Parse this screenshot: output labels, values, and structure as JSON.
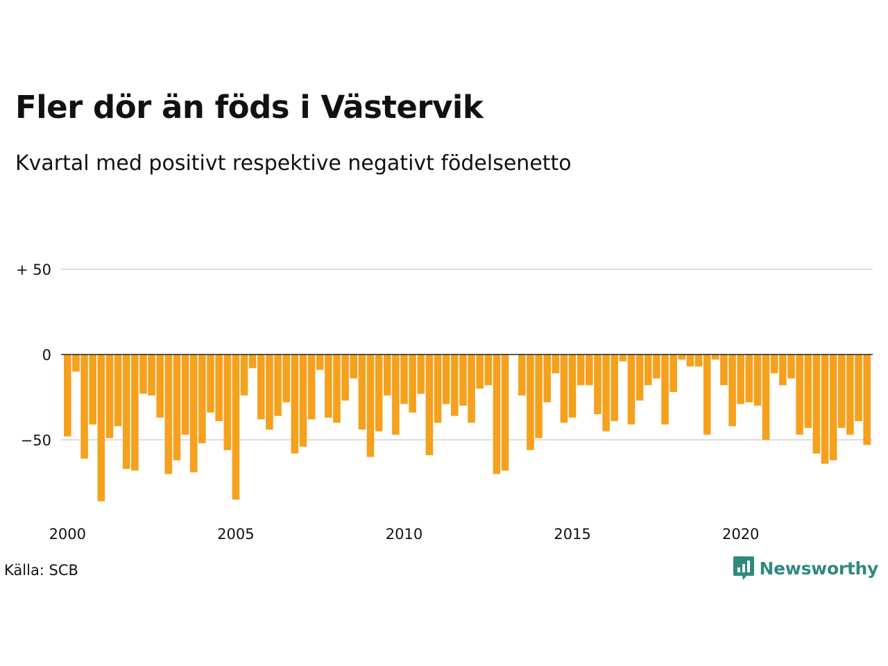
{
  "title": "Fler dör än föds i Västervik",
  "subtitle": "Kvartal med positivt respektive negativt födelsenetto",
  "source": "Källa: SCB",
  "brand": {
    "name": "Newsworthy",
    "icon": "newsworthy-logo-icon"
  },
  "colors": {
    "bar": "#F5A11D",
    "grid": "#dddddd",
    "zero_line": "#222222",
    "brand": "#2e8a7d"
  },
  "chart_data": {
    "type": "bar",
    "x_unit": "quarter",
    "x_start": "2000 Q1",
    "ylim": [
      -95,
      55
    ],
    "y_ticks": [
      {
        "value": 50,
        "label": "+ 50"
      },
      {
        "value": 0,
        "label": "0"
      },
      {
        "value": -50,
        "label": "−50"
      }
    ],
    "x_ticks": [
      {
        "year": 2000,
        "label": "2000"
      },
      {
        "year": 2005,
        "label": "2005"
      },
      {
        "year": 2010,
        "label": "2010"
      },
      {
        "year": 2015,
        "label": "2015"
      },
      {
        "year": 2020,
        "label": "2020"
      }
    ],
    "grid": true,
    "values": [
      -48,
      -10,
      -61,
      -41,
      -86,
      -49,
      -42,
      -67,
      -68,
      -23,
      -24,
      -37,
      -70,
      -62,
      -47,
      -69,
      -52,
      -34,
      -39,
      -56,
      -85,
      -24,
      -8,
      -38,
      -44,
      -36,
      -28,
      -58,
      -54,
      -38,
      -9,
      -37,
      -40,
      -27,
      -14,
      -44,
      -60,
      -45,
      -24,
      -47,
      -29,
      -34,
      -23,
      -59,
      -40,
      -29,
      -36,
      -30,
      -40,
      -20,
      -18,
      -70,
      -68,
      0,
      -24,
      -56,
      -49,
      -28,
      -11,
      -40,
      -37,
      -18,
      -18,
      -35,
      -45,
      -39,
      -4,
      -41,
      -27,
      -18,
      -14,
      -41,
      -22,
      -3,
      -7,
      -7,
      -47,
      -3,
      -18,
      -42,
      -29,
      -28,
      -30,
      -50,
      -11,
      -18,
      -14,
      -47,
      -43,
      -58,
      -64,
      -62,
      -43,
      -47,
      -39,
      -53
    ]
  }
}
